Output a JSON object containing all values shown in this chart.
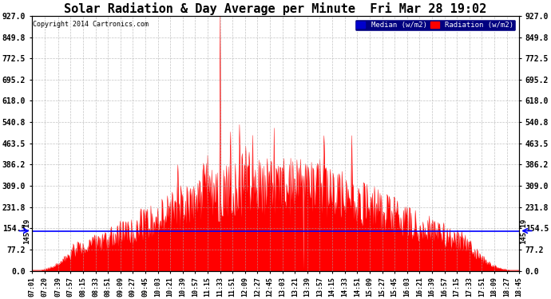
{
  "title": "Solar Radiation & Day Average per Minute  Fri Mar 28 19:02",
  "copyright": "Copyright 2014 Cartronics.com",
  "y_min": 0.0,
  "y_max": 927.0,
  "y_ticks": [
    0.0,
    77.2,
    154.5,
    231.8,
    309.0,
    386.2,
    463.5,
    540.8,
    618.0,
    695.2,
    772.5,
    849.8,
    927.0
  ],
  "median_line": 145.19,
  "median_label": "145.19",
  "fill_color": "#FF0000",
  "line_color": "#FF0000",
  "background_color": "#FFFFFF",
  "grid_color": "#AAAAAA",
  "legend_median_color": "#0000CC",
  "legend_radiation_color": "#FF0000",
  "title_fontsize": 11,
  "x_start_hour": 7,
  "x_start_min": 1,
  "x_end_hour": 18,
  "x_end_min": 45,
  "tick_times": [
    "07:01",
    "07:20",
    "07:39",
    "07:57",
    "08:15",
    "08:33",
    "08:51",
    "09:09",
    "09:27",
    "09:45",
    "10:03",
    "10:21",
    "10:39",
    "10:57",
    "11:15",
    "11:33",
    "11:51",
    "12:09",
    "12:27",
    "12:45",
    "13:03",
    "13:21",
    "13:39",
    "13:57",
    "14:15",
    "14:33",
    "14:51",
    "15:09",
    "15:27",
    "15:45",
    "16:03",
    "16:21",
    "16:39",
    "16:57",
    "17:15",
    "17:33",
    "17:51",
    "18:09",
    "18:27",
    "18:45"
  ]
}
